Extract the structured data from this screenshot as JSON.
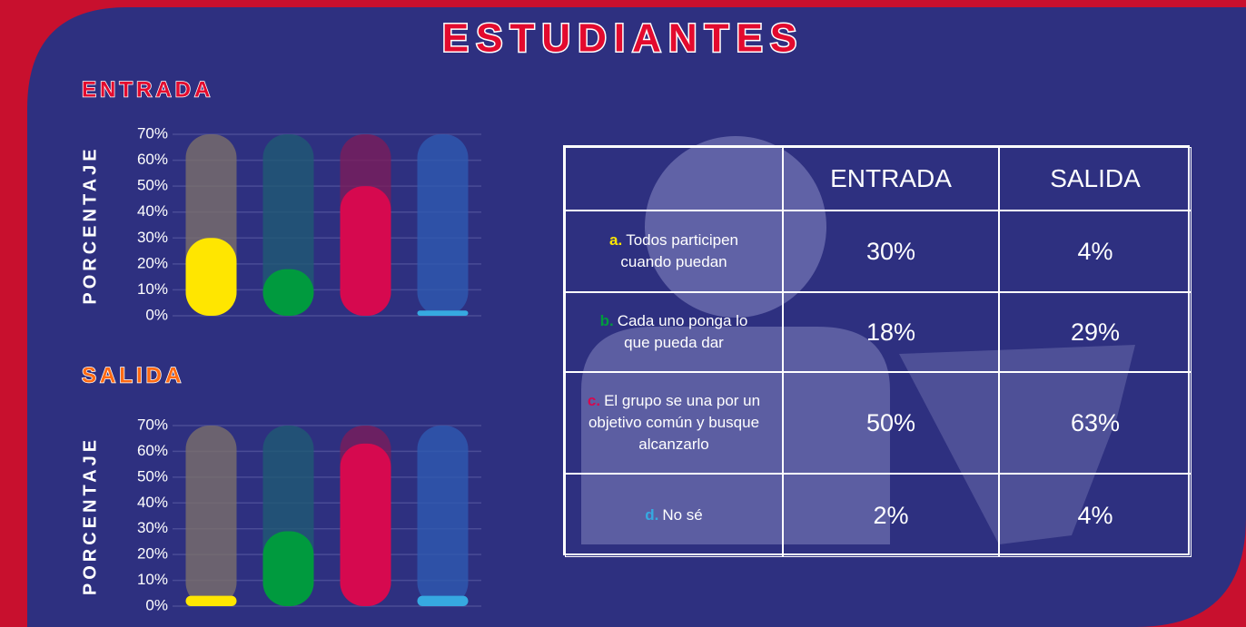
{
  "title": "ESTUDIANTES",
  "chart_data": [
    {
      "type": "bar",
      "title": "ENTRADA",
      "y_label": "PORCENTAJE",
      "categories": [
        null,
        null,
        null,
        null
      ],
      "values": [
        30,
        18,
        50,
        2
      ],
      "colors": [
        "#ffe600",
        "#009a3e",
        "#d6094f",
        "#36a9e1"
      ],
      "ylim": [
        0,
        70
      ],
      "yticks": [
        {
          "value": 0,
          "label": "0%"
        },
        {
          "value": 10,
          "label": "10%"
        },
        {
          "value": 20,
          "label": "20%"
        },
        {
          "value": 30,
          "label": "30%"
        },
        {
          "value": 40,
          "label": "40%"
        },
        {
          "value": 50,
          "label": "50%"
        },
        {
          "value": 60,
          "label": "60%"
        },
        {
          "value": 70,
          "label": "70%"
        }
      ],
      "grid": true
    },
    {
      "type": "bar",
      "title": "SALIDA",
      "y_label": "PORCENTAJE",
      "categories": [
        null,
        null,
        null,
        null
      ],
      "values": [
        4,
        29,
        63,
        4
      ],
      "colors": [
        "#ffe600",
        "#009a3e",
        "#d6094f",
        "#36a9e1"
      ],
      "ylim": [
        0,
        70
      ],
      "yticks": [
        {
          "value": 0,
          "label": "0%"
        },
        {
          "value": 10,
          "label": "10%"
        },
        {
          "value": 20,
          "label": "20%"
        },
        {
          "value": 30,
          "label": "30%"
        },
        {
          "value": 40,
          "label": "40%"
        },
        {
          "value": 50,
          "label": "50%"
        },
        {
          "value": 60,
          "label": "60%"
        },
        {
          "value": 70,
          "label": "70%"
        }
      ],
      "grid": true
    }
  ],
  "table": {
    "columns": [
      "ENTRADA",
      "SALIDA"
    ],
    "rows": [
      {
        "letter": "a.",
        "text": "Todos participen cuando puedan",
        "values": [
          "30%",
          "4%"
        ]
      },
      {
        "letter": "b.",
        "text": "Cada uno ponga lo que pueda dar",
        "values": [
          "18%",
          "29%"
        ]
      },
      {
        "letter": "c.",
        "text": "El grupo se una por un objetivo común y busque alcanzarlo",
        "values": [
          "50%",
          "63%"
        ]
      },
      {
        "letter": "d.",
        "text": "No sé",
        "values": [
          "2%",
          "4%"
        ]
      }
    ]
  }
}
